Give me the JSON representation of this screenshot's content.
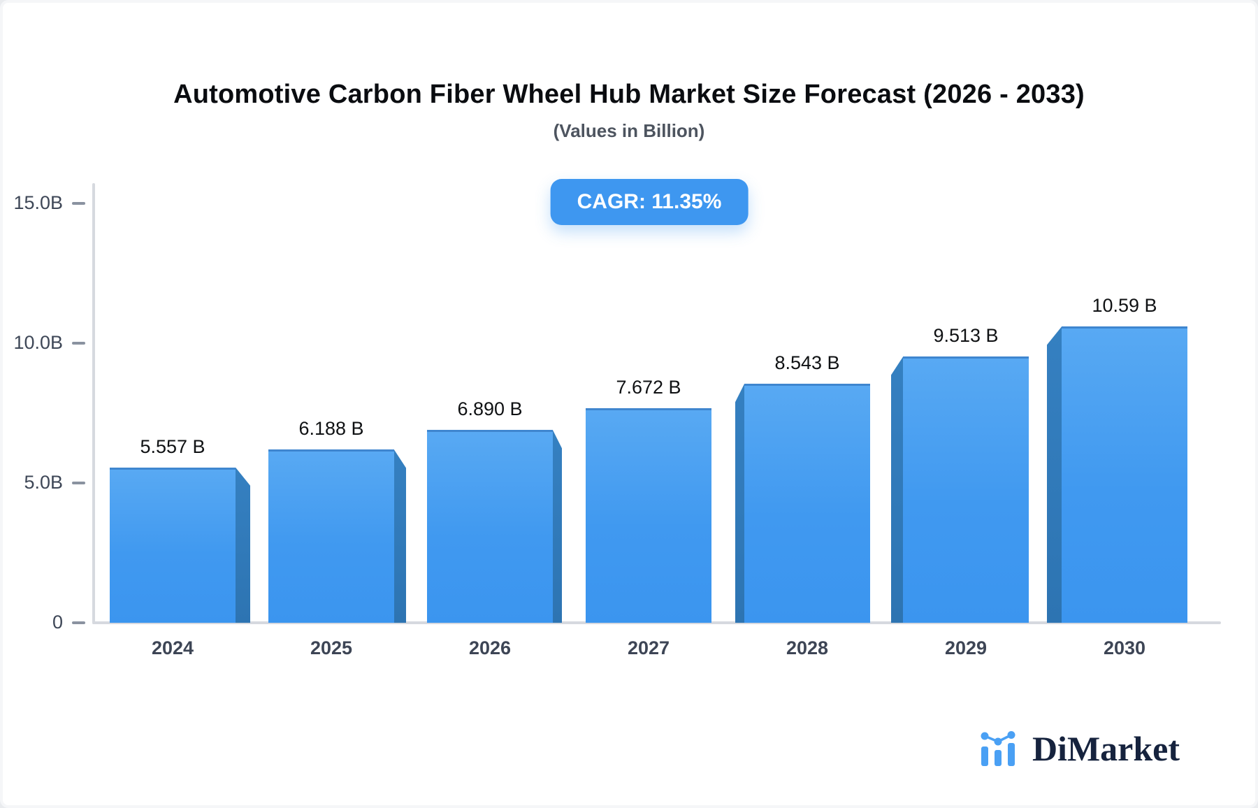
{
  "title": "Automotive Carbon Fiber Wheel Hub Market Size Forecast (2026 - 2033)",
  "subtitle": "(Values in Billion)",
  "badge": {
    "label": "CAGR: 11.35%",
    "color": "#3e97f0"
  },
  "chart_data": {
    "type": "bar",
    "title": "Automotive Carbon Fiber Wheel Hub Market Size Forecast (2026 - 2033)",
    "subtitle": "(Values in Billion)",
    "categories": [
      "2024",
      "2025",
      "2026",
      "2027",
      "2028",
      "2029",
      "2030"
    ],
    "values": [
      5.557,
      6.188,
      6.89,
      7.672,
      8.543,
      9.513,
      10.59
    ],
    "value_labels": [
      "5.557 B",
      "6.188 B",
      "6.890 B",
      "7.672 B",
      "8.543 B",
      "9.513 B",
      "10.59 B"
    ],
    "xlabel": "",
    "ylabel": "",
    "ylim": [
      0,
      15
    ],
    "y_ticks": [
      0,
      5,
      10,
      15
    ],
    "y_tick_labels": [
      "0",
      "5.0B",
      "10.0B",
      "15.0B"
    ],
    "grid": false,
    "legend": false,
    "bar_color": "#3b95ef",
    "bar_side_color": "#2d74b2",
    "style": "3d-perspective-bars"
  },
  "logo": {
    "text": "DiMarket",
    "icon": "bar-chart-logo-icon",
    "text_color": "#16233e",
    "accent_color": "#4aa0f4"
  }
}
